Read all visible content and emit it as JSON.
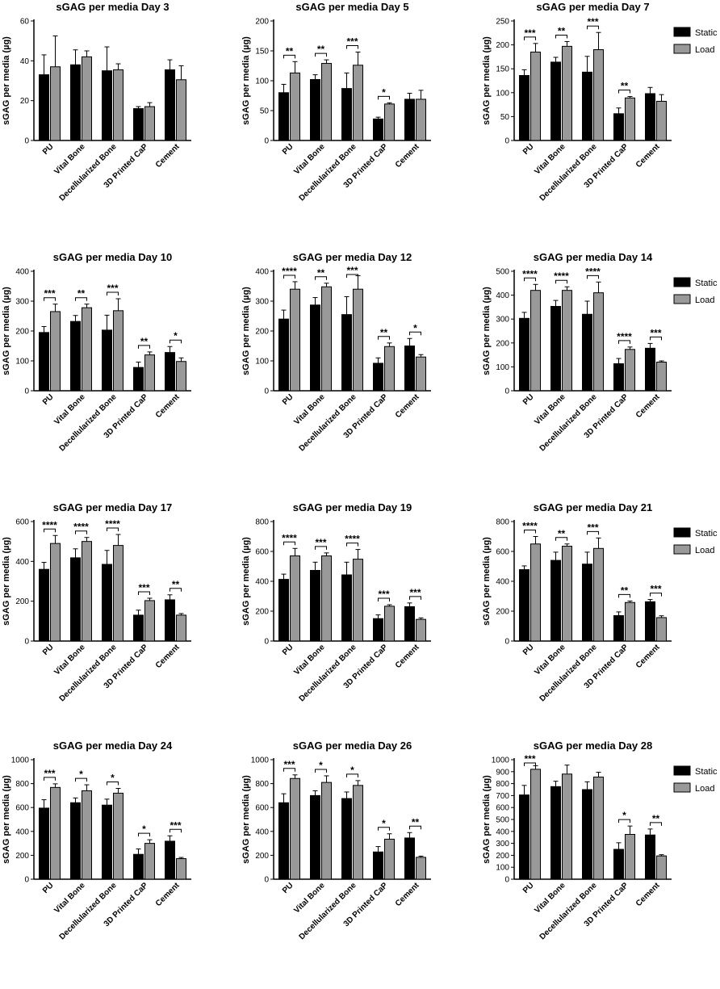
{
  "series_names": [
    "Static",
    "Load"
  ],
  "series_colors": [
    "#000000",
    "#999999"
  ],
  "chart_data": [
    {
      "type": "bar",
      "title": "sGAG per media Day 3",
      "ylabel": "sGAG per media (µg)",
      "categories": [
        "PU",
        "Vital Bone",
        "Decellularized Bone",
        "3D Printed CaP",
        "Cement"
      ],
      "ylim": [
        0,
        60
      ],
      "yticks": [
        0,
        20,
        40,
        60
      ],
      "legend": false,
      "series": [
        {
          "name": "Static",
          "values": [
            33,
            38,
            35,
            16,
            35.5
          ],
          "errors": [
            10,
            7.5,
            12,
            1,
            5
          ]
        },
        {
          "name": "Load",
          "values": [
            37,
            42,
            35.5,
            17,
            30.5
          ],
          "errors": [
            15.5,
            3,
            3,
            2,
            7
          ]
        }
      ],
      "significance": []
    },
    {
      "type": "bar",
      "title": "sGAG per media Day 5",
      "ylabel": "sGAG per media (µg)",
      "categories": [
        "PU",
        "Vital Bone",
        "Decellularized Bone",
        "3D Printed CaP",
        "Cement"
      ],
      "ylim": [
        0,
        200
      ],
      "yticks": [
        0,
        50,
        100,
        150,
        200
      ],
      "legend": false,
      "series": [
        {
          "name": "Static",
          "values": [
            80,
            102,
            87,
            36,
            69
          ],
          "errors": [
            14,
            8,
            26,
            3,
            10
          ]
        },
        {
          "name": "Load",
          "values": [
            113,
            129,
            126,
            61,
            69
          ],
          "errors": [
            19,
            6,
            22,
            2,
            15
          ]
        }
      ],
      "significance": [
        "**",
        "**",
        "***",
        "*",
        ""
      ]
    },
    {
      "type": "bar",
      "title": "sGAG per media Day 7",
      "ylabel": "sGAG per media (µg)",
      "categories": [
        "PU",
        "Vital Bone",
        "Decellularized Bone",
        "3D Printed CaP",
        "Cement"
      ],
      "ylim": [
        0,
        250
      ],
      "yticks": [
        0,
        50,
        100,
        150,
        200,
        250
      ],
      "legend": true,
      "series": [
        {
          "name": "Static",
          "values": [
            136,
            164,
            143,
            56,
            98
          ],
          "errors": [
            12,
            10,
            33,
            12,
            13
          ]
        },
        {
          "name": "Load",
          "values": [
            185,
            197,
            190,
            89,
            82
          ],
          "errors": [
            18,
            10,
            36,
            3,
            14
          ]
        }
      ],
      "significance": [
        "***",
        "**",
        "***",
        "**",
        ""
      ]
    },
    {
      "type": "bar",
      "title": "sGAG per media Day 10",
      "ylabel": "sGAG per media (µg)",
      "categories": [
        "PU",
        "Vital Bone",
        "Decellularized Bone",
        "3D Printed CaP",
        "Cement"
      ],
      "ylim": [
        0,
        400
      ],
      "yticks": [
        0,
        100,
        200,
        300,
        400
      ],
      "legend": false,
      "series": [
        {
          "name": "Static",
          "values": [
            195,
            232,
            203,
            78,
            128
          ],
          "errors": [
            20,
            20,
            50,
            18,
            20
          ]
        },
        {
          "name": "Load",
          "values": [
            265,
            278,
            268,
            120,
            98
          ],
          "errors": [
            25,
            12,
            40,
            10,
            12
          ]
        }
      ],
      "significance": [
        "***",
        "**",
        "***",
        "**",
        "*"
      ]
    },
    {
      "type": "bar",
      "title": "sGAG per media Day 12",
      "ylabel": "sGAG per media (µg)",
      "categories": [
        "PU",
        "Vital Bone",
        "Decellularized Bone",
        "3D Printed CaP",
        "Cement"
      ],
      "ylim": [
        0,
        400
      ],
      "yticks": [
        0,
        100,
        200,
        300,
        400
      ],
      "legend": false,
      "series": [
        {
          "name": "Static",
          "values": [
            240,
            287,
            255,
            92,
            150
          ],
          "errors": [
            30,
            25,
            60,
            18,
            25
          ]
        },
        {
          "name": "Load",
          "values": [
            340,
            348,
            340,
            148,
            113
          ],
          "errors": [
            25,
            12,
            45,
            12,
            8
          ]
        }
      ],
      "significance": [
        "****",
        "**",
        "***",
        "**",
        "*"
      ]
    },
    {
      "type": "bar",
      "title": "sGAG per media Day 14",
      "ylabel": "sGAG per media (µg)",
      "categories": [
        "PU",
        "Vital Bone",
        "Decellularized Bone",
        "3D Printed CaP",
        "Cement"
      ],
      "ylim": [
        0,
        500
      ],
      "yticks": [
        0,
        100,
        200,
        300,
        400,
        500
      ],
      "legend": true,
      "series": [
        {
          "name": "Static",
          "values": [
            303,
            353,
            320,
            113,
            178
          ],
          "errors": [
            25,
            25,
            55,
            22,
            20
          ]
        },
        {
          "name": "Load",
          "values": [
            420,
            420,
            410,
            173,
            120
          ],
          "errors": [
            25,
            15,
            45,
            10,
            5
          ]
        }
      ],
      "significance": [
        "****",
        "****",
        "****",
        "****",
        "***"
      ]
    },
    {
      "type": "bar",
      "title": "sGAG per media Day 17",
      "ylabel": "sGAG per media (µg)",
      "categories": [
        "PU",
        "Vital Bone",
        "Decellularized Bone",
        "3D Printed CaP",
        "Cement"
      ],
      "ylim": [
        0,
        600
      ],
      "yticks": [
        0,
        200,
        400,
        600
      ],
      "legend": false,
      "series": [
        {
          "name": "Static",
          "values": [
            360,
            418,
            385,
            130,
            207
          ],
          "errors": [
            35,
            45,
            70,
            25,
            25
          ]
        },
        {
          "name": "Load",
          "values": [
            490,
            500,
            480,
            203,
            130
          ],
          "errors": [
            40,
            20,
            55,
            12,
            8
          ]
        }
      ],
      "significance": [
        "****",
        "****",
        "****",
        "***",
        "**"
      ]
    },
    {
      "type": "bar",
      "title": "sGAG per media Day 19",
      "ylabel": "sGAG per media (µg)",
      "categories": [
        "PU",
        "Vital Bone",
        "Decellularized Bone",
        "3D Printed CaP",
        "Cement"
      ],
      "ylim": [
        0,
        800
      ],
      "yticks": [
        0,
        200,
        400,
        600,
        800
      ],
      "legend": false,
      "series": [
        {
          "name": "Static",
          "values": [
            413,
            473,
            443,
            150,
            230
          ],
          "errors": [
            35,
            55,
            85,
            25,
            25
          ]
        },
        {
          "name": "Load",
          "values": [
            570,
            570,
            548,
            233,
            145
          ],
          "errors": [
            50,
            20,
            65,
            10,
            10
          ]
        }
      ],
      "significance": [
        "****",
        "***",
        "****",
        "***",
        "***"
      ]
    },
    {
      "type": "bar",
      "title": "sGAG per media Day 21",
      "ylabel": "sGAG per media (µg)",
      "categories": [
        "PU",
        "Vital Bone",
        "Decellularized Bone",
        "3D Printed CaP",
        "Cement"
      ],
      "ylim": [
        0,
        800
      ],
      "yticks": [
        0,
        200,
        400,
        600,
        800
      ],
      "legend": true,
      "series": [
        {
          "name": "Static",
          "values": [
            478,
            540,
            515,
            170,
            263
          ],
          "errors": [
            25,
            55,
            80,
            25,
            15
          ]
        },
        {
          "name": "Load",
          "values": [
            650,
            635,
            620,
            258,
            157
          ],
          "errors": [
            50,
            15,
            70,
            10,
            12
          ]
        }
      ],
      "significance": [
        "****",
        "**",
        "***",
        "**",
        "***"
      ]
    },
    {
      "type": "bar",
      "title": "sGAG per media Day 24",
      "ylabel": "sGAG per media (µg)",
      "categories": [
        "PU",
        "Vital Bone",
        "Decellularized Bone",
        "3D Printed CaP",
        "Cement"
      ],
      "ylim": [
        0,
        1000
      ],
      "yticks": [
        0,
        200,
        400,
        600,
        800,
        1000
      ],
      "legend": false,
      "series": [
        {
          "name": "Static",
          "values": [
            595,
            640,
            620,
            208,
            318
          ],
          "errors": [
            70,
            40,
            50,
            45,
            45
          ]
        },
        {
          "name": "Load",
          "values": [
            768,
            740,
            720,
            300,
            172
          ],
          "errors": [
            30,
            50,
            40,
            30,
            10
          ]
        }
      ],
      "significance": [
        "***",
        "*",
        "*",
        "*",
        "***"
      ]
    },
    {
      "type": "bar",
      "title": "sGAG per media Day 26",
      "ylabel": "sGAG per media (µg)",
      "categories": [
        "PU",
        "Vital Bone",
        "Decellularized Bone",
        "3D Printed CaP",
        "Cement"
      ],
      "ylim": [
        0,
        1000
      ],
      "yticks": [
        0,
        200,
        400,
        600,
        800,
        1000
      ],
      "legend": false,
      "series": [
        {
          "name": "Static",
          "values": [
            640,
            700,
            675,
            228,
            345
          ],
          "errors": [
            75,
            40,
            55,
            45,
            45
          ]
        },
        {
          "name": "Load",
          "values": [
            843,
            810,
            785,
            335,
            183
          ],
          "errors": [
            30,
            55,
            40,
            45,
            10
          ]
        }
      ],
      "significance": [
        "***",
        "*",
        "*",
        "*",
        "**"
      ]
    },
    {
      "type": "bar",
      "title": "sGAG per media Day 28",
      "ylabel": "sGAG per media (µg)",
      "categories": [
        "PU",
        "Vital Bone",
        "Decellularized Bone",
        "3D Printed CaP",
        "Cement"
      ],
      "ylim": [
        0,
        1000
      ],
      "yticks": [
        0,
        100,
        200,
        300,
        400,
        500,
        600,
        700,
        800,
        900,
        1000
      ],
      "legend": true,
      "series": [
        {
          "name": "Static",
          "values": [
            705,
            775,
            750,
            250,
            370
          ],
          "errors": [
            80,
            45,
            65,
            55,
            50
          ]
        },
        {
          "name": "Load",
          "values": [
            920,
            880,
            855,
            375,
            195
          ],
          "errors": [
            30,
            75,
            40,
            70,
            10
          ]
        }
      ],
      "significance": [
        "***",
        "",
        "",
        "*",
        "**"
      ]
    }
  ]
}
